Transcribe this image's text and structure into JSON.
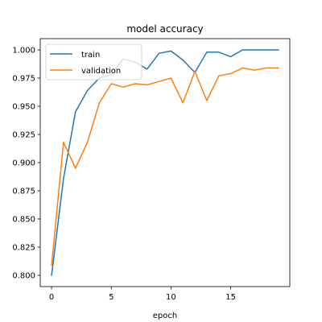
{
  "chart_data": {
    "type": "line",
    "title": "model accuracy",
    "xlabel": "epoch",
    "ylabel": "",
    "x": [
      0,
      1,
      2,
      3,
      4,
      5,
      6,
      7,
      8,
      9,
      10,
      11,
      12,
      13,
      14,
      15,
      16,
      17,
      18,
      19
    ],
    "xlim": [
      -0.95,
      19.95
    ],
    "ylim": [
      0.79,
      1.01
    ],
    "xticks": [
      0,
      5,
      10,
      15
    ],
    "yticks": [
      0.8,
      0.825,
      0.85,
      0.875,
      0.9,
      0.925,
      0.95,
      0.975,
      1.0
    ],
    "xtick_labels": [
      "0",
      "5",
      "10",
      "15"
    ],
    "ytick_labels": [
      "0.800",
      "0.825",
      "0.850",
      "0.875",
      "0.900",
      "0.925",
      "0.950",
      "0.975",
      "1.000"
    ],
    "grid": false,
    "legend_position": "top-left",
    "series": [
      {
        "name": "train",
        "color": "#1f77b4",
        "values": [
          0.8,
          0.886,
          0.945,
          0.964,
          0.975,
          0.978,
          0.992,
          0.989,
          0.983,
          0.997,
          0.999,
          0.991,
          0.98,
          0.998,
          0.998,
          0.994,
          1.0,
          1.0,
          1.0,
          1.0
        ]
      },
      {
        "name": "validation",
        "color": "#ff7f0e",
        "values": [
          0.809,
          0.918,
          0.895,
          0.918,
          0.953,
          0.97,
          0.967,
          0.97,
          0.969,
          0.972,
          0.975,
          0.953,
          0.981,
          0.955,
          0.977,
          0.979,
          0.984,
          0.982,
          0.984,
          0.984
        ]
      }
    ]
  }
}
